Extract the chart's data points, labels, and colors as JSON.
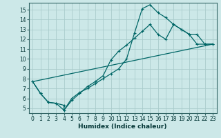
{
  "title": "",
  "xlabel": "Humidex (Indice chaleur)",
  "bg_color": "#cce8e8",
  "grid_color": "#aacccc",
  "line_color": "#006666",
  "xlim": [
    -0.5,
    23.5
  ],
  "ylim": [
    4.5,
    15.7
  ],
  "xticks": [
    0,
    1,
    2,
    3,
    4,
    5,
    6,
    7,
    8,
    9,
    10,
    11,
    12,
    13,
    14,
    15,
    16,
    17,
    18,
    19,
    20,
    21,
    22,
    23
  ],
  "yticks": [
    5,
    6,
    7,
    8,
    9,
    10,
    11,
    12,
    13,
    14,
    15
  ],
  "line1_x": [
    0,
    1,
    2,
    3,
    4,
    4,
    5,
    6,
    7,
    8,
    9,
    10,
    11,
    12,
    13,
    14,
    15,
    16,
    17,
    18,
    19,
    20,
    21,
    22,
    23
  ],
  "line1_y": [
    7.7,
    6.5,
    5.6,
    5.5,
    5.3,
    4.8,
    6.0,
    6.6,
    7.0,
    7.5,
    8.0,
    8.5,
    9.0,
    10.0,
    12.6,
    15.1,
    15.5,
    14.7,
    14.2,
    13.5,
    13.0,
    12.5,
    11.5,
    11.5,
    11.5
  ],
  "line2_x": [
    0,
    1,
    2,
    3,
    4,
    5,
    6,
    7,
    8,
    9,
    10,
    11,
    12,
    13,
    14,
    15,
    16,
    17,
    18,
    19,
    20,
    21,
    22,
    23
  ],
  "line2_y": [
    7.7,
    6.5,
    5.6,
    5.5,
    4.8,
    5.8,
    6.5,
    7.2,
    7.7,
    8.3,
    9.9,
    10.8,
    11.4,
    12.1,
    12.8,
    13.5,
    12.5,
    12.0,
    13.5,
    13.0,
    12.5,
    12.5,
    11.5,
    11.5
  ],
  "line3_x": [
    0,
    23
  ],
  "line3_y": [
    7.7,
    11.5
  ],
  "tick_fontsize": 5.5,
  "xlabel_fontsize": 6.5
}
